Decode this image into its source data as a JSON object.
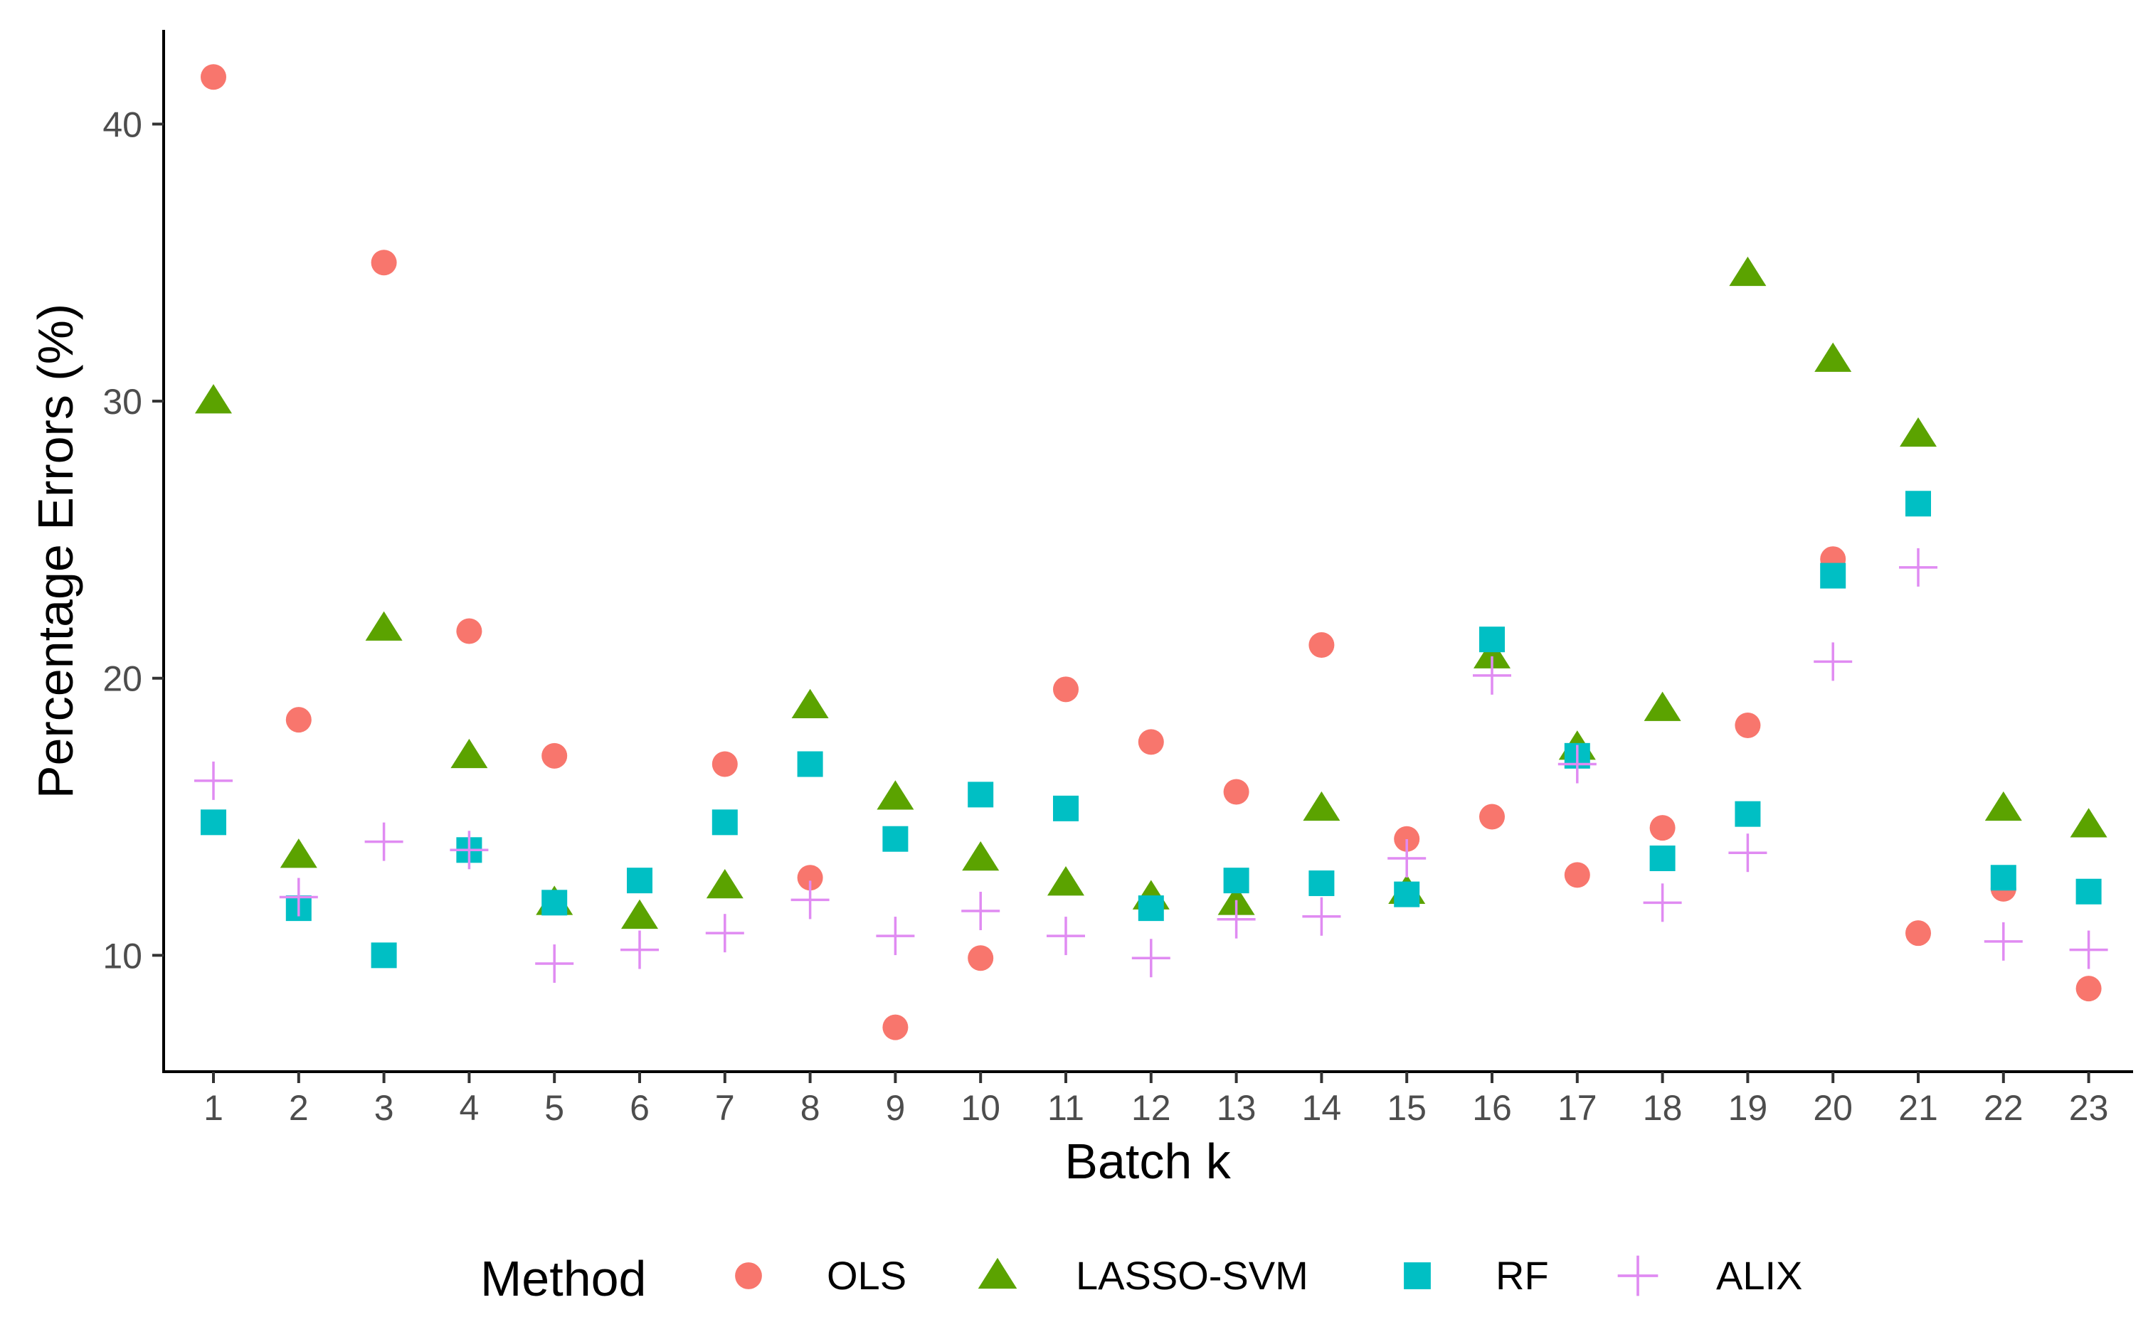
{
  "chart_data": {
    "type": "scatter",
    "title": "",
    "xlabel": "Batch k",
    "ylabel": "Percentage Errors (%)",
    "categories": [
      "1",
      "2",
      "3",
      "4",
      "5",
      "6",
      "7",
      "8",
      "9",
      "10",
      "11",
      "12",
      "13",
      "14",
      "15",
      "16",
      "17",
      "18",
      "19",
      "20",
      "21",
      "22",
      "23"
    ],
    "yticks": [
      10,
      20,
      30,
      40
    ],
    "ytick_labels": [
      "10",
      "20",
      "30",
      "40"
    ],
    "ylim": [
      5.8,
      43.4
    ],
    "grid": false,
    "legend": {
      "title": "Method",
      "position": "bottom"
    },
    "series": [
      {
        "name": "OLS",
        "marker": "circle",
        "color": "#F8766D",
        "values": [
          41.7,
          18.5,
          35.0,
          21.7,
          17.2,
          null,
          16.9,
          12.8,
          7.4,
          9.9,
          19.6,
          17.7,
          15.9,
          21.2,
          14.2,
          15.0,
          12.9,
          14.6,
          18.3,
          24.3,
          10.8,
          12.4,
          8.8
        ]
      },
      {
        "name": "LASSO-SVM",
        "marker": "triangle",
        "color": "#5BA300",
        "values": [
          30.0,
          13.6,
          21.8,
          17.2,
          11.9,
          11.4,
          12.5,
          19.0,
          15.7,
          13.5,
          12.6,
          12.1,
          11.9,
          15.3,
          12.3,
          20.8,
          17.5,
          18.9,
          34.6,
          31.5,
          28.8,
          15.3,
          14.7
        ]
      },
      {
        "name": "RF",
        "marker": "square",
        "color": "#00BFC4",
        "values": [
          14.8,
          11.7,
          10.0,
          13.8,
          11.9,
          12.7,
          14.8,
          16.9,
          14.2,
          15.8,
          15.3,
          11.7,
          12.7,
          12.6,
          12.2,
          21.4,
          17.2,
          13.5,
          15.1,
          23.7,
          26.3,
          12.8,
          12.3
        ]
      },
      {
        "name": "ALIX",
        "marker": "plus",
        "color": "#E08BF2",
        "values": [
          16.3,
          12.1,
          14.1,
          13.8,
          9.7,
          10.2,
          10.8,
          12.0,
          10.7,
          11.6,
          10.7,
          9.9,
          11.3,
          11.4,
          13.5,
          20.1,
          16.9,
          11.9,
          13.7,
          20.6,
          24.0,
          10.5,
          10.2
        ]
      }
    ]
  }
}
